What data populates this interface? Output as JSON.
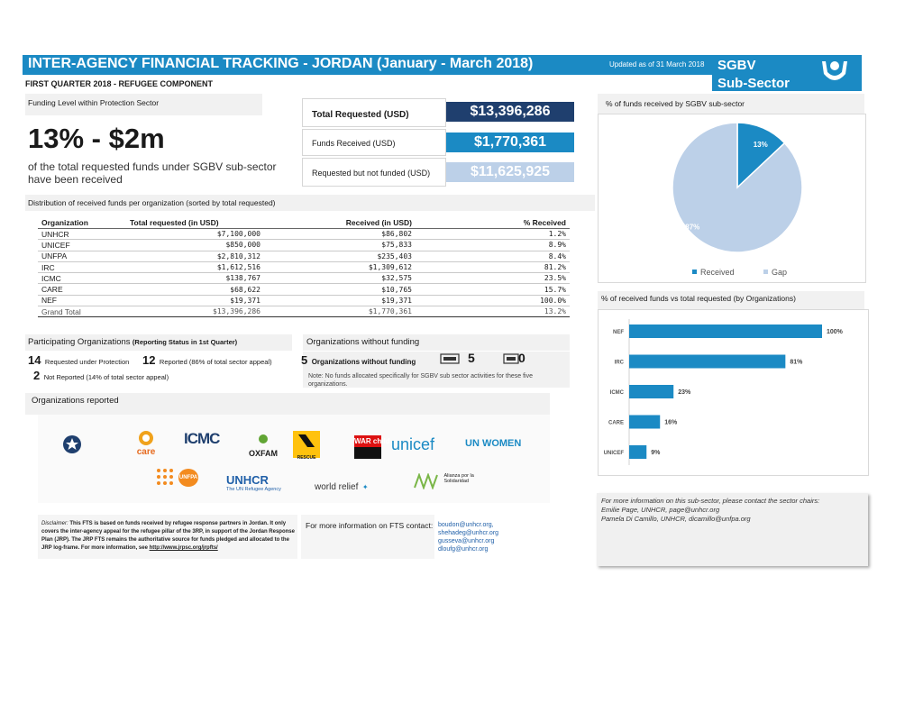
{
  "header": {
    "title": "INTER-AGENCY FINANCIAL TRACKING - JORDAN (January - March 2018)",
    "updated": "Updated as of 31 March 2018",
    "sector_line1": "SGBV",
    "sector_line2": "Sub-Sector",
    "subtitle": "FIRST QUARTER 2018 - REFUGEE COMPONENT",
    "icon": "hands-protection-icon"
  },
  "funding_level": {
    "label": "Funding Level within Protection Sector",
    "headline": "13% - $2m",
    "description": "of the total requested funds under SGBV sub-sector have been received"
  },
  "summary": {
    "requested_label": "Total Requested (USD)",
    "requested_value": "$13,396,286",
    "received_label": "Funds Received (USD)",
    "received_value": "$1,770,361",
    "unfunded_label": "Requested but not funded (USD)",
    "unfunded_value": "$11,625,925",
    "colors": {
      "requested": "#1f3f6e",
      "received": "#1b8ac4",
      "unfunded": "#bcd0e8"
    }
  },
  "distribution": {
    "label": "Distribution of received funds per organization (sorted by total requested)",
    "columns": [
      "Organization",
      "Total requested (in USD)",
      "Received (in USD)",
      "% Received"
    ],
    "rows": [
      [
        "UNHCR",
        "$7,100,000",
        "$86,802",
        "1.2%"
      ],
      [
        "UNICEF",
        "$850,000",
        "$75,833",
        "8.9%"
      ],
      [
        "UNFPA",
        "$2,810,312",
        "$235,403",
        "8.4%"
      ],
      [
        "IRC",
        "$1,612,516",
        "$1,309,612",
        "81.2%"
      ],
      [
        "ICMC",
        "$138,767",
        "$32,575",
        "23.5%"
      ],
      [
        "CARE",
        "$68,622",
        "$10,765",
        "15.7%"
      ],
      [
        "NEF",
        "$19,371",
        "$19,371",
        "100.0%"
      ]
    ],
    "total": [
      "Grand Total",
      "$13,396,286",
      "$1,770,361",
      "13.2%"
    ]
  },
  "participating": {
    "label": "Participating Organizations",
    "label_note": "(Reporting Status in 1st Quarter)",
    "requested_count": "14",
    "requested_text": "Requested under Protection",
    "reported_count": "12",
    "reported_text": "Reported (86% of total sector appeal)",
    "not_reported_count": "2",
    "not_reported_text": "Not Reported (14% of total sector appeal)"
  },
  "without_funding": {
    "label": "Organizations without funding",
    "count": "5",
    "count_text": "Organizations without funding",
    "icon_count": "5",
    "icon_count_2": "0",
    "note": "Note: No funds allocated specifically for SGBV sub sector activities for these five organizations."
  },
  "orgs_reported": {
    "label": "Organizations reported",
    "logos_row1": [
      "care",
      "ICMC",
      "OXFAM",
      "RESCUE",
      "WAR child",
      "unicef",
      "UN WOMEN"
    ],
    "logos_row2": [
      "UNFPA",
      "UNHCR",
      "The UN Refugee Agency",
      "world relief",
      "Alianza por la Solidaridad"
    ]
  },
  "disclaimer": {
    "title": "Disclaimer:",
    "text": "This FTS is based on funds received by refugee response partners in Jordan. It only covers the inter-agency appeal for the refugee pillar of the 3RP, in support of the Jordan Response Plan (JRP). The JRP FTS remains the authoritative source for funds pledged and allocated to the JRP log-frame. For more information, see",
    "link": "http://www.jrpsc.org/jrpfts/"
  },
  "fts_contact": {
    "label": "For more information on FTS contact:",
    "emails": [
      "boudon@unhcr.org,",
      "shehadeg@unhcr.org",
      "gusseva@unhcr.org",
      "dloufg@unhcr.org"
    ]
  },
  "pie": {
    "label": "% of funds received by SGBV sub-sector",
    "legend": [
      "Received",
      "Gap"
    ],
    "colors": {
      "received": "#1b8ac4",
      "gap": "#bcd0e8"
    }
  },
  "bar": {
    "label": "% of received funds vs total requested (by Organizations)",
    "color": "#1b8ac4"
  },
  "chart_data": [
    {
      "type": "pie",
      "categories": [
        "Received",
        "Gap"
      ],
      "values": [
        13,
        87
      ],
      "data_labels": [
        "13%",
        "87%"
      ],
      "legend": "bottom"
    },
    {
      "type": "bar",
      "orientation": "horizontal",
      "categories": [
        "NEF",
        "IRC",
        "ICMC",
        "CARE",
        "UNICEF"
      ],
      "values": [
        100,
        81,
        23,
        16,
        9
      ],
      "data_labels": [
        "100%",
        "81%",
        "23%",
        "16%",
        "9%"
      ],
      "xlim": [
        0,
        100
      ]
    }
  ],
  "sector_contact": {
    "lines": [
      "For more information on this sub-sector, please contact the sector chairs:",
      "Emilie Page, UNHCR, page@unhcr.org",
      "Pamela Di Camillo, UNHCR, dicamillo@unfpa.org"
    ]
  }
}
